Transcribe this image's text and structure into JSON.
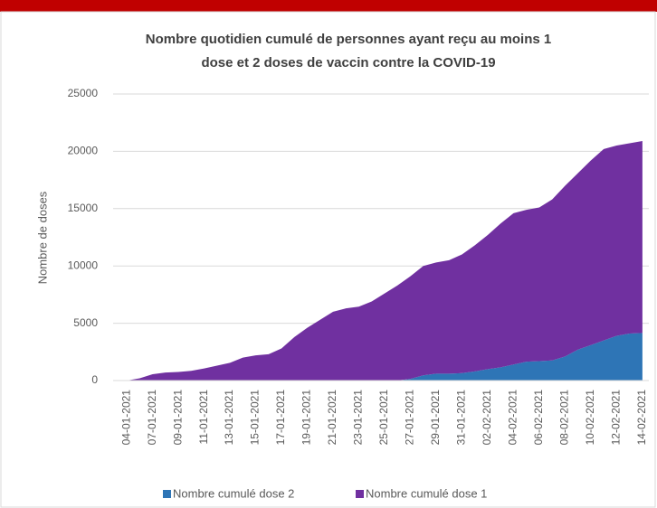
{
  "chart_data": {
    "type": "stacked_area",
    "title": "Nombre quotidien cumulé de personnes ayant reçu au moins 1",
    "subtitle": "dose et 2 doses de vaccin contre la COVID-19",
    "y_label": "Nombre de doses",
    "categories": [
      "04-01-2021",
      null,
      "07-01-2021",
      null,
      "09-01-2021",
      null,
      "11-01-2021",
      null,
      "13-01-2021",
      null,
      "15-01-2021",
      null,
      "17-01-2021",
      null,
      "19-01-2021",
      null,
      "21-01-2021",
      null,
      "23-01-2021",
      null,
      "25-01-2021",
      null,
      "27-01-2021",
      null,
      "29-01-2021",
      null,
      "31-01-2021",
      null,
      "02-02-2021",
      null,
      "04-02-2021",
      null,
      "06-02-2021",
      null,
      "08-02-2021",
      null,
      "10-02-2021",
      null,
      "12-02-2021",
      null,
      "14-02-2021"
    ],
    "series": [
      {
        "name": "Nombre cumulé dose 2",
        "color": "#2e75b6",
        "values": [
          0,
          0,
          0,
          0,
          0,
          0,
          0,
          0,
          0,
          0,
          0,
          0,
          0,
          0,
          0,
          0,
          0,
          0,
          0,
          0,
          0,
          0,
          150,
          450,
          600,
          600,
          650,
          800,
          1000,
          1150,
          1400,
          1650,
          1700,
          1750,
          2100,
          2700,
          3100,
          3500,
          3900,
          4100,
          4150
        ]
      },
      {
        "name": "Nombre cumulé dose 1",
        "color": "#7030a0",
        "values": [
          0,
          200,
          550,
          700,
          750,
          850,
          1050,
          1300,
          1550,
          2000,
          2200,
          2300,
          2800,
          3800,
          4600,
          5300,
          6000,
          6300,
          6450,
          6900,
          7600,
          8300,
          8950,
          9550,
          9700,
          9900,
          10350,
          11000,
          11700,
          12550,
          13200,
          13250,
          13400,
          14050,
          14900,
          15400,
          16100,
          16700,
          16600,
          16600,
          16750
        ]
      }
    ],
    "ylim": [
      0,
      25000
    ],
    "yticks": [
      0,
      5000,
      10000,
      15000,
      20000,
      25000
    ],
    "grid": true
  }
}
